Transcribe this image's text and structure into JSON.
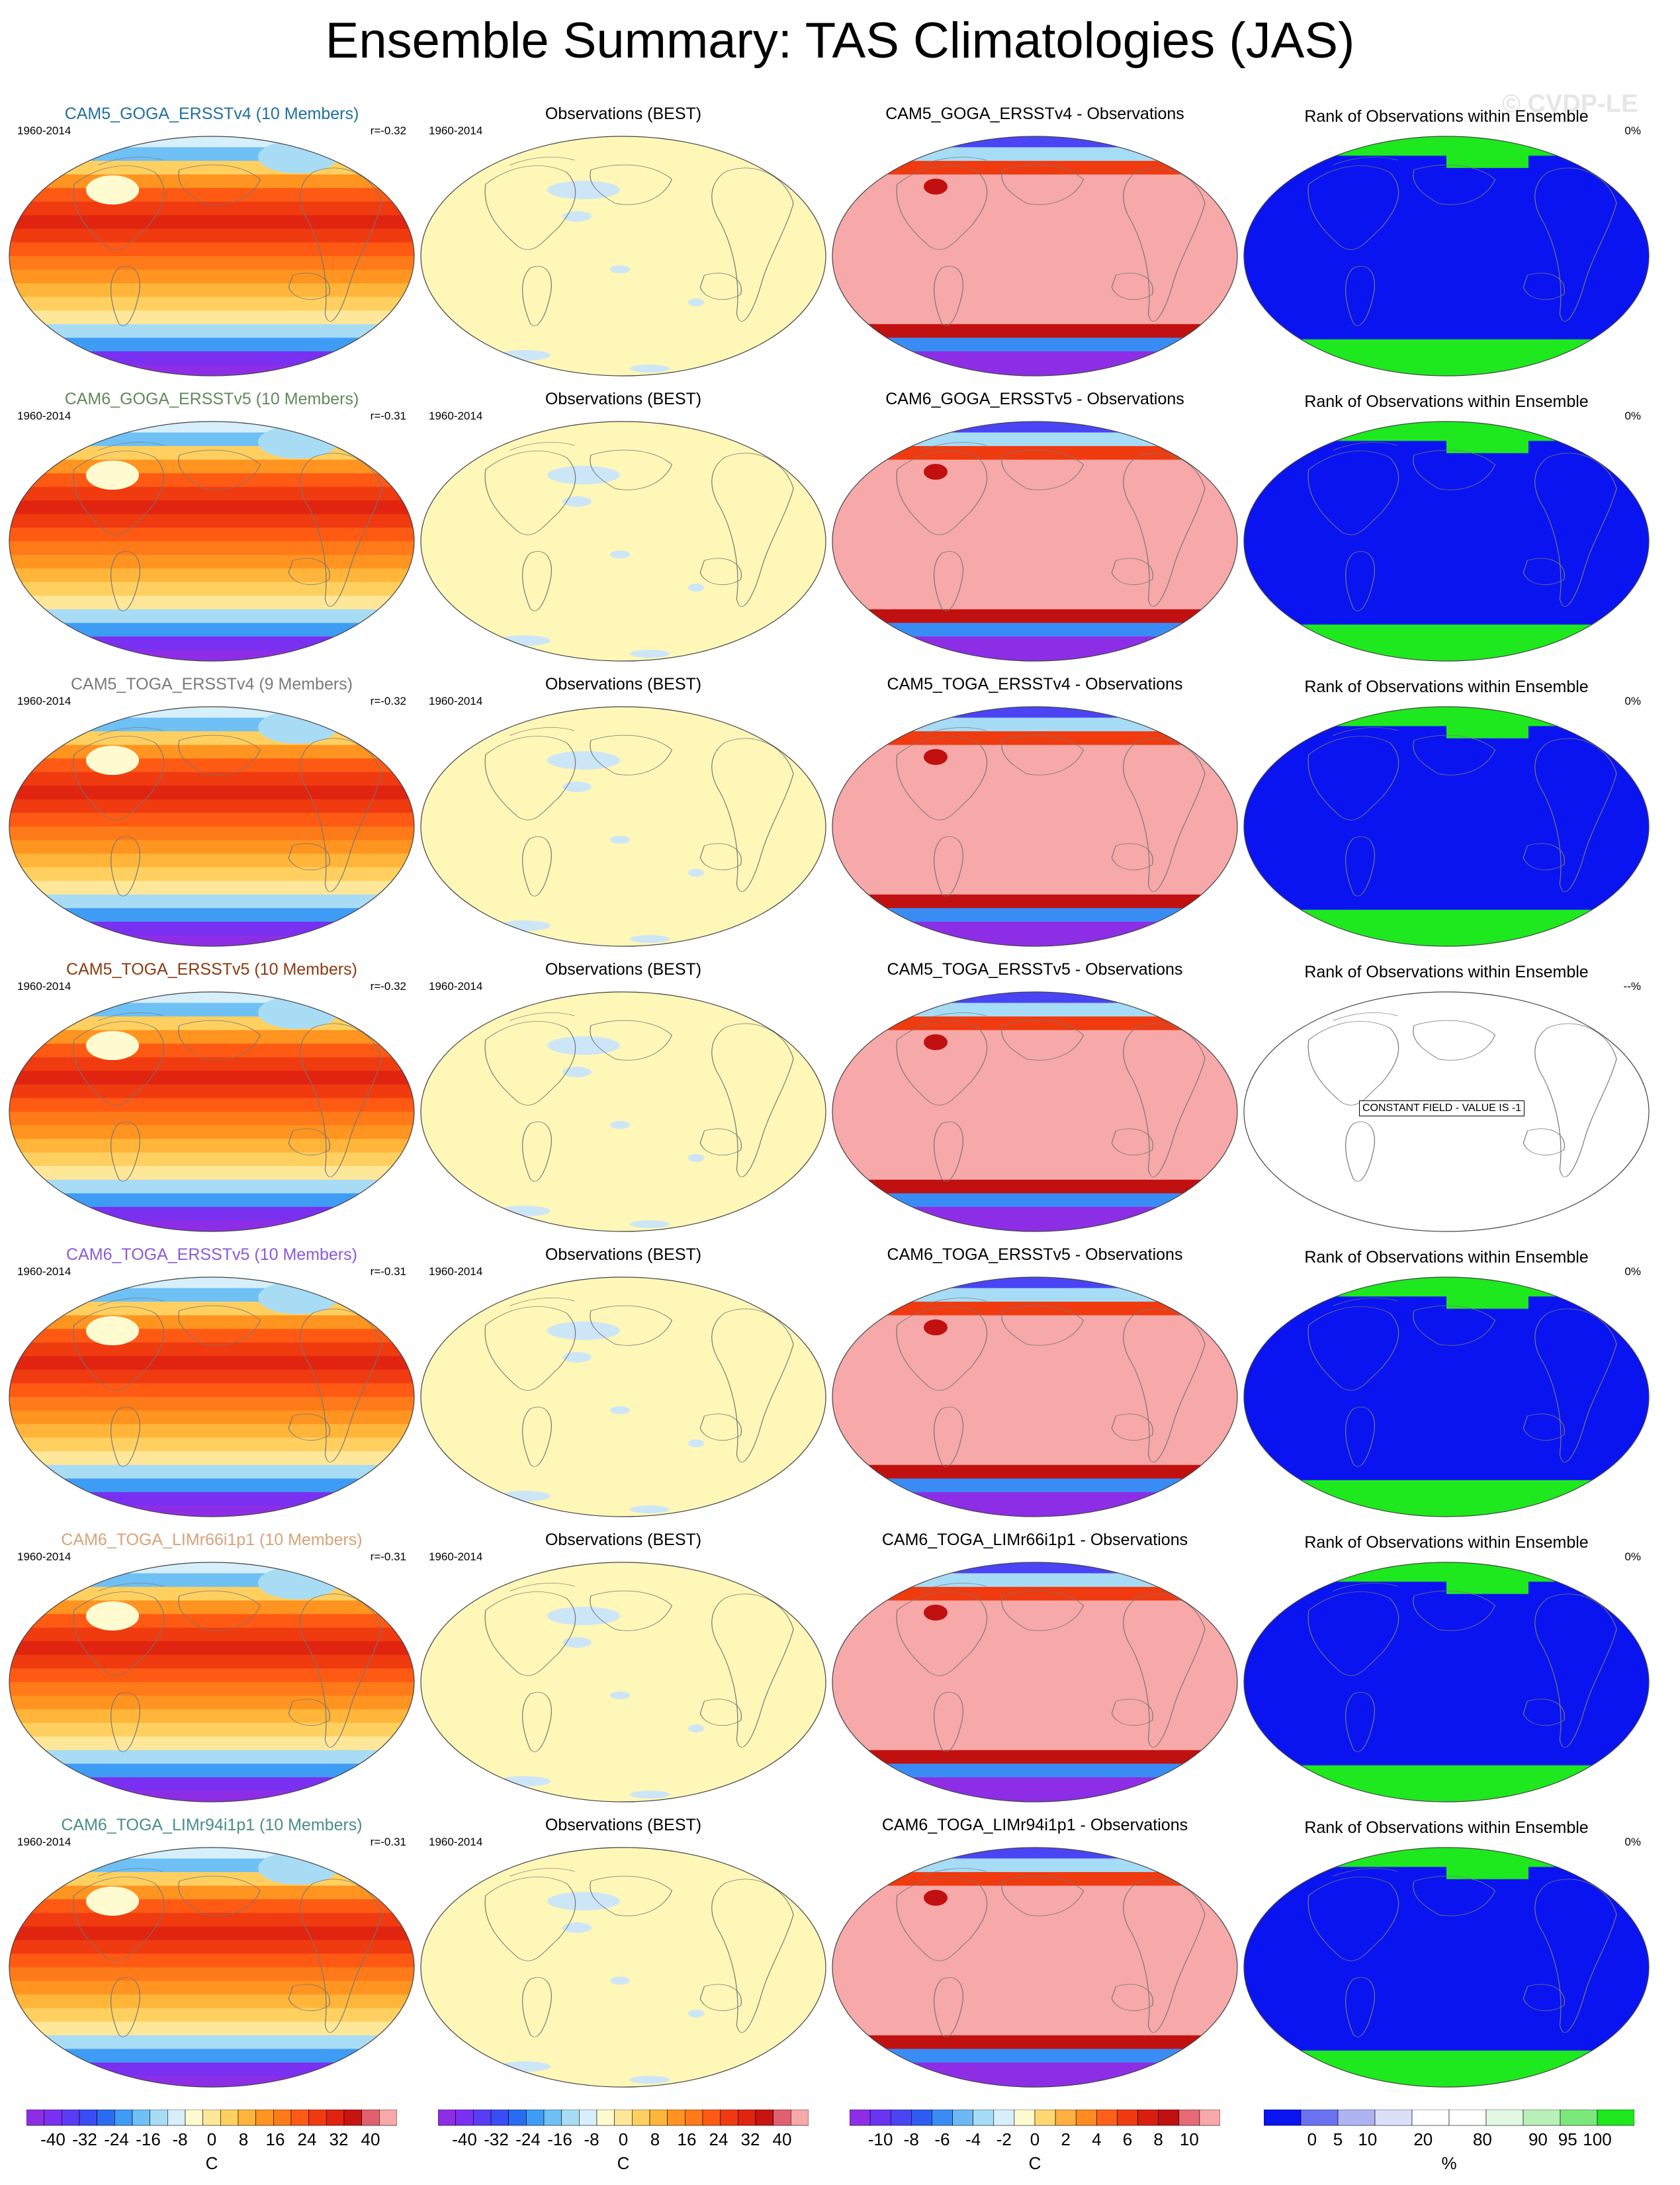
{
  "title": "Ensemble Summary: TAS Climatologies (JAS)",
  "watermark": "© CVDP-LE",
  "rows": [
    {
      "ens_title": "CAM5_GOGA_ERSSTv4 (10 Members)",
      "ens_color": "#1f6f9e",
      "years": "1960-2014",
      "r": "r=-0.32",
      "obs_title": "Observations (BEST)",
      "obs_years": "1960-2014",
      "diff_title": "CAM5_GOGA_ERSSTv4 - Observations",
      "rank_title": "Rank of Observations within Ensemble",
      "rank_pct": "0%",
      "rank_note": ""
    },
    {
      "ens_title": "CAM6_GOGA_ERSSTv5 (10 Members)",
      "ens_color": "#5f8a5a",
      "years": "1960-2014",
      "r": "r=-0.31",
      "obs_title": "Observations (BEST)",
      "obs_years": "1960-2014",
      "diff_title": "CAM6_GOGA_ERSSTv5 - Observations",
      "rank_title": "Rank of Observations within Ensemble",
      "rank_pct": "0%",
      "rank_note": ""
    },
    {
      "ens_title": "CAM5_TOGA_ERSSTv4 (9 Members)",
      "ens_color": "#7a7a7a",
      "years": "1960-2014",
      "r": "r=-0.32",
      "obs_title": "Observations (BEST)",
      "obs_years": "1960-2014",
      "diff_title": "CAM5_TOGA_ERSSTv4 - Observations",
      "rank_title": "Rank of Observations within Ensemble",
      "rank_pct": "0%",
      "rank_note": ""
    },
    {
      "ens_title": "CAM5_TOGA_ERSSTv5 (10 Members)",
      "ens_color": "#8b3a10",
      "years": "1960-2014",
      "r": "r=-0.32",
      "obs_title": "Observations (BEST)",
      "obs_years": "1960-2014",
      "diff_title": "CAM5_TOGA_ERSSTv5 - Observations",
      "rank_title": "Rank of Observations within Ensemble",
      "rank_pct": "--%",
      "rank_note": "CONSTANT FIELD - VALUE IS -1"
    },
    {
      "ens_title": "CAM6_TOGA_ERSSTv5 (10 Members)",
      "ens_color": "#8a5ad8",
      "years": "1960-2014",
      "r": "r=-0.31",
      "obs_title": "Observations (BEST)",
      "obs_years": "1960-2014",
      "diff_title": "CAM6_TOGA_ERSSTv5 - Observations",
      "rank_title": "Rank of Observations within Ensemble",
      "rank_pct": "0%",
      "rank_note": ""
    },
    {
      "ens_title": "CAM6_TOGA_LIMr66i1p1 (10 Members)",
      "ens_color": "#d9a27a",
      "years": "1960-2014",
      "r": "r=-0.31",
      "obs_title": "Observations (BEST)",
      "obs_years": "1960-2014",
      "diff_title": "CAM6_TOGA_LIMr66i1p1 - Observations",
      "rank_title": "Rank of Observations within Ensemble",
      "rank_pct": "0%",
      "rank_note": ""
    },
    {
      "ens_title": "CAM6_TOGA_LIMr94i1p1 (10 Members)",
      "ens_color": "#4a8c8c",
      "years": "1960-2014",
      "r": "r=-0.31",
      "obs_title": "Observations (BEST)",
      "obs_years": "1960-2014",
      "diff_title": "CAM6_TOGA_LIMr94i1p1 - Observations",
      "rank_title": "Rank of Observations within Ensemble",
      "rank_pct": "0%",
      "rank_note": ""
    }
  ],
  "colorbars": [
    {
      "unit": "C",
      "labels": [
        "-40",
        "-32",
        "-24",
        "-16",
        "-8",
        "0",
        "8",
        "16",
        "24",
        "32",
        "40"
      ],
      "colors": [
        "#8d2ee6",
        "#7a30f0",
        "#5a3cf5",
        "#3a4cf5",
        "#2a6cf0",
        "#3f9cf5",
        "#6ec0f5",
        "#a8dcf5",
        "#d6effa",
        "#fffbd0",
        "#ffe79a",
        "#ffd060",
        "#ffb53a",
        "#ff9420",
        "#ff7a18",
        "#ff5a14",
        "#f03a10",
        "#e02410",
        "#c81410",
        "#e06070",
        "#f7a8a8"
      ]
    },
    {
      "unit": "C",
      "labels": [
        "-40",
        "-32",
        "-24",
        "-16",
        "-8",
        "0",
        "8",
        "16",
        "24",
        "32",
        "40"
      ],
      "colors": [
        "#8d2ee6",
        "#7a30f0",
        "#5a3cf5",
        "#3a4cf5",
        "#2a6cf0",
        "#3f9cf5",
        "#6ec0f5",
        "#a8dcf5",
        "#d6effa",
        "#fffbd0",
        "#ffe79a",
        "#ffd060",
        "#ffb53a",
        "#ff9420",
        "#ff7a18",
        "#ff5a14",
        "#f03a10",
        "#e02410",
        "#c81410",
        "#e06070",
        "#f7a8a8"
      ]
    },
    {
      "unit": "C",
      "labels": [
        "-10",
        "-8",
        "-6",
        "-4",
        "-2",
        "0",
        "2",
        "4",
        "6",
        "8",
        "10"
      ],
      "colors": [
        "#8d2ee6",
        "#6a34f2",
        "#4a44f5",
        "#2e5cf2",
        "#3a8cf5",
        "#6cb8f5",
        "#a6dcf5",
        "#d6effa",
        "#fffbd0",
        "#ffd870",
        "#ffb040",
        "#ff8a20",
        "#ff6018",
        "#f03a10",
        "#d81e10",
        "#c01010",
        "#e66a78",
        "#f7a8a8"
      ]
    },
    {
      "unit": "%",
      "labels": [
        "0",
        "5",
        "10",
        "20",
        "80",
        "90",
        "95",
        "100"
      ],
      "colors": [
        "#0a14f0",
        "#6a72f0",
        "#aeb4f2",
        "#dcdff8",
        "#ffffff",
        "#ffffff",
        "#e2f8e2",
        "#b8f0b8",
        "#7ce87c",
        "#1ee81e"
      ]
    }
  ],
  "chart_data": {
    "type": "heatmap",
    "variable": "TAS",
    "season": "JAS",
    "period": "1960-2014",
    "panels_per_row": [
      "ensemble mean climatology",
      "observations (BEST)",
      "ensemble minus observations",
      "rank of observations within ensemble"
    ],
    "ensemble_pattern_r": [
      -0.32,
      -0.31,
      -0.32,
      -0.32,
      -0.31,
      -0.31,
      -0.31
    ],
    "rank_percent": [
      "0%",
      "0%",
      "0%",
      "--%",
      "0%",
      "0%",
      "0%"
    ],
    "colorbar_ranges": {
      "climatology_C": [
        -40,
        40
      ],
      "difference_C": [
        -10,
        10
      ],
      "rank_percent": [
        0,
        100
      ]
    }
  }
}
